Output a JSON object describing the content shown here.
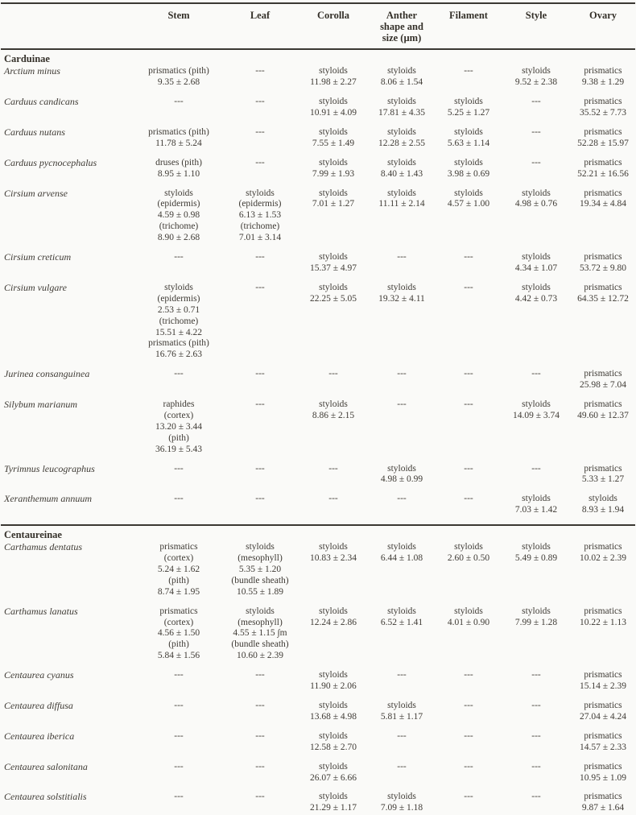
{
  "page": {
    "background": "#fafaf8",
    "text_color": "#3f3b35",
    "rule_color": "#3b3833"
  },
  "table": {
    "columns": [
      "",
      "Stem",
      "Leaf",
      "Corolla",
      "Anther\nshape and\nsize (µm)",
      "Filament",
      "Style",
      "Ovary"
    ],
    "empty_marker": "---",
    "groups": [
      {
        "name": "Carduinae",
        "rows": [
          {
            "species": "Arctium minus",
            "cells": [
              "prismatics (pith)\n9.35 ± 2.68",
              "---",
              "styloids\n11.98 ± 2.27",
              "styloids\n8.06 ± 1.54",
              "---",
              "styloids\n9.52 ± 2.38",
              "prismatics\n9.38 ± 1.29"
            ]
          },
          {
            "species": "Carduus candicans",
            "cells": [
              "---",
              "---",
              "styloids\n10.91 ± 4.09",
              "styloids\n17.81 ± 4.35",
              "styloids\n5.25 ± 1.27",
              "---",
              "prismatics\n35.52 ± 7.73"
            ]
          },
          {
            "species": "Carduus nutans",
            "cells": [
              "prismatics (pith)\n11.78 ± 5.24",
              "---",
              "styloids\n7.55 ± 1.49",
              "styloids\n12.28 ± 2.55",
              "styloids\n5.63 ± 1.14",
              "---",
              "prismatics\n52.28 ± 15.97"
            ]
          },
          {
            "species": "Carduus pycnocephalus",
            "cells": [
              "druses (pith)\n8.95 ± 1.10",
              "---",
              "styloids\n7.99 ± 1.93",
              "styloids\n8.40 ± 1.43",
              "styloids\n3.98 ± 0.69",
              "---",
              "prismatics\n52.21 ± 16.56"
            ]
          },
          {
            "species": "Cirsium arvense",
            "cells": [
              "styloids\n(epidermis)\n4.59 ± 0.98\n(trichome)\n8.90 ± 2.68",
              "styloids\n(epidermis)\n6.13 ± 1.53\n(trichome)\n7.01 ± 3.14",
              "styloids\n7.01 ± 1.27",
              "styloids\n11.11 ± 2.14",
              "styloids\n4.57 ± 1.00",
              "styloids\n4.98 ± 0.76",
              "prismatics\n19.34 ± 4.84"
            ]
          },
          {
            "species": "Cirsium creticum",
            "cells": [
              "---",
              "---",
              "styloids\n15.37 ± 4.97",
              "---",
              "---",
              "styloids\n4.34 ± 1.07",
              "prismatics\n53.72 ± 9.80"
            ]
          },
          {
            "species": "Cirsium vulgare",
            "cells": [
              "styloids\n(epidermis)\n2.53 ± 0.71\n(trichome)\n15.51 ± 4.22\nprismatics (pith)\n16.76 ± 2.63",
              "---",
              "styloids\n22.25 ± 5.05",
              "styloids\n19.32 ± 4.11",
              "---",
              "styloids\n4.42 ± 0.73",
              "prismatics\n64.35 ± 12.72"
            ]
          },
          {
            "species": "Jurinea consanguinea",
            "cells": [
              "---",
              "---",
              "---",
              "---",
              "---",
              "---",
              "prismatics\n25.98 ± 7.04"
            ]
          },
          {
            "species": "Silybum marianum",
            "cells": [
              "raphides\n(cortex)\n13.20 ± 3.44\n(pith)\n36.19 ± 5.43",
              "---",
              "styloids\n8.86 ± 2.15",
              "---",
              "---",
              "styloids\n14.09 ± 3.74",
              "prismatics\n49.60 ± 12.37"
            ]
          },
          {
            "species": "Tyrimnus leucographus",
            "cells": [
              "---",
              "---",
              "---",
              "styloids\n4.98 ± 0.99",
              "---",
              "---",
              "prismatics\n5.33 ± 1.27"
            ]
          },
          {
            "species": "Xeranthemum annuum",
            "cells": [
              "---",
              "---",
              "---",
              "---",
              "---",
              "styloids\n7.03 ± 1.42",
              "styloids\n8.93 ± 1.94"
            ]
          }
        ]
      },
      {
        "name": "Centaureinae",
        "rows": [
          {
            "species": "Carthamus dentatus",
            "cells": [
              "prismatics\n(cortex)\n5.24 ± 1.62\n(pith)\n8.74 ± 1.95",
              "styloids\n(mesophyll)\n5.35 ± 1.20\n(bundle sheath)\n10.55 ± 1.89",
              "styloids\n10.83 ± 2.34",
              "styloids\n6.44 ± 1.08",
              "styloids\n2.60 ± 0.50",
              "styloids\n5.49 ± 0.89",
              "prismatics\n10.02 ± 2.39"
            ]
          },
          {
            "species": "Carthamus lanatus",
            "cells": [
              "prismatics\n(cortex)\n4.56 ± 1.50\n(pith)\n5.84 ± 1.56",
              "styloids\n(mesophyll)\n4.55 ± 1.15 ∫m\n(bundle sheath)\n10.60 ± 2.39",
              "styloids\n12.24 ± 2.86",
              "styloids\n6.52 ± 1.41",
              "styloids\n4.01 ± 0.90",
              "styloids\n7.99 ± 1.28",
              "prismatics\n10.22 ± 1.13"
            ]
          },
          {
            "species": "Centaurea cyanus",
            "cells": [
              "---",
              "---",
              "styloids\n11.90 ± 2.06",
              "---",
              "---",
              "---",
              "prismatics\n15.14 ± 2.39"
            ]
          },
          {
            "species": "Centaurea diffusa",
            "cells": [
              "---",
              "---",
              "styloids\n13.68 ± 4.98",
              "styloids\n5.81 ± 1.17",
              "---",
              "---",
              "prismatics\n27.04 ± 4.24"
            ]
          },
          {
            "species": "Centaurea iberica",
            "cells": [
              "---",
              "---",
              "styloids\n12.58 ± 2.70",
              "---",
              "---",
              "---",
              "prismatics\n14.57 ± 2.33"
            ]
          },
          {
            "species": "Centaurea salonitana",
            "cells": [
              "---",
              "---",
              "styloids\n26.07 ± 6.66",
              "---",
              "---",
              "---",
              "prismatics\n10.95 ± 1.09"
            ]
          },
          {
            "species": "Centaurea solstitialis",
            "cells": [
              "---",
              "---",
              "styloids\n21.29 ± 1.17",
              "styloids\n7.09 ± 1.18",
              "---",
              "---",
              "prismatics\n9.87 ± 1.64"
            ]
          }
        ]
      }
    ]
  }
}
